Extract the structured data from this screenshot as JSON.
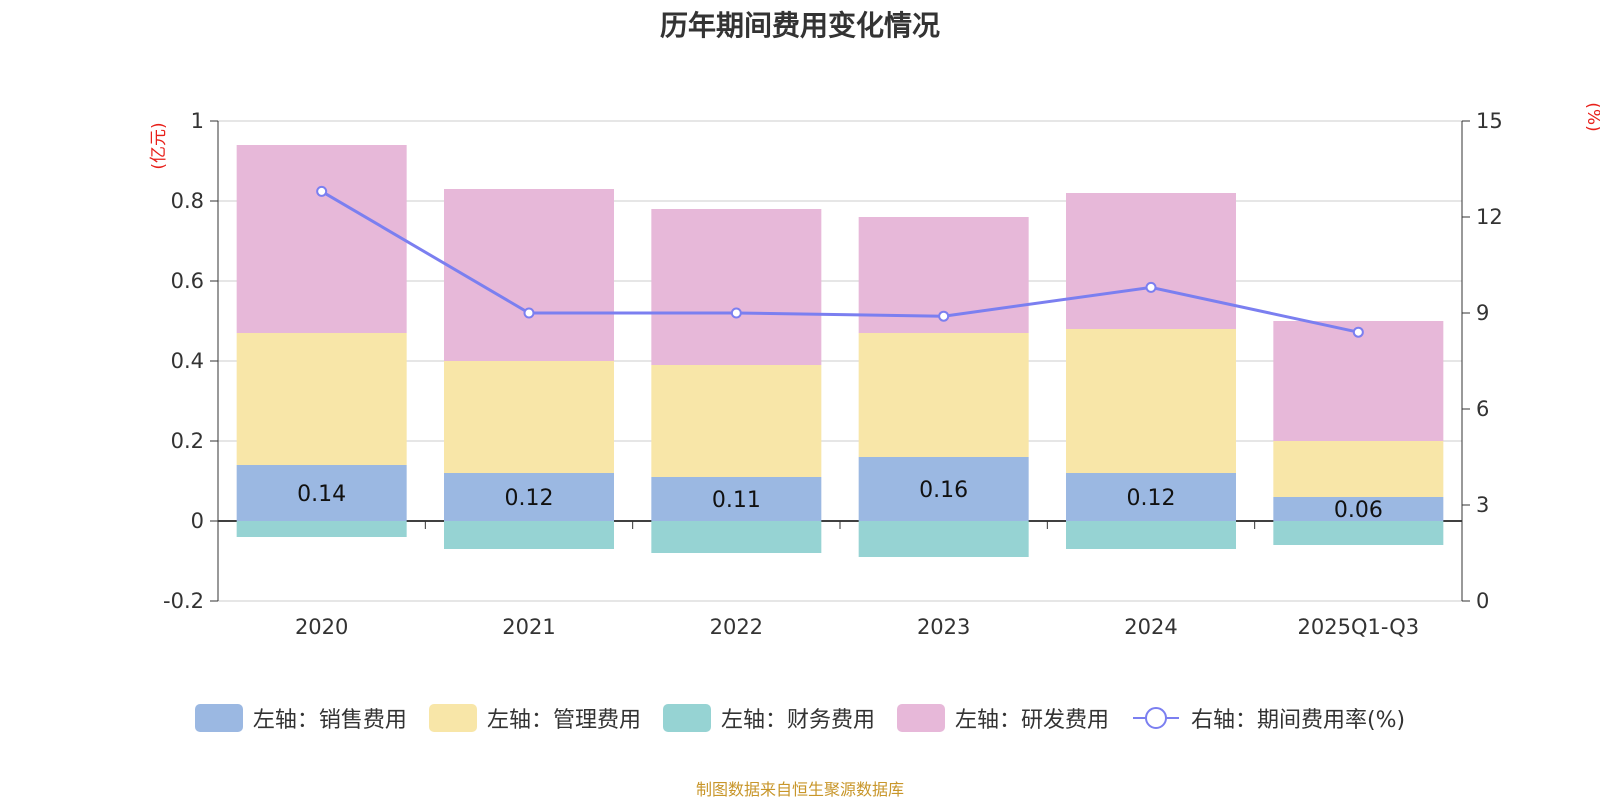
{
  "colors": {
    "sales": "#9bb8e2",
    "admin": "#f8e6a8",
    "finance": "#96d3d3",
    "rnd": "#e7b8d9",
    "rate": "#7b7ff0",
    "unit": "#e8201a",
    "footer": "#c8962a"
  },
  "legend": {
    "sales": "左轴：销售费用",
    "admin": "左轴：管理费用",
    "finance": "左轴：财务费用",
    "rnd": "左轴：研发费用",
    "rate": "右轴：期间费用率(%)"
  },
  "footer": "制图数据来自恒生聚源数据库",
  "chart_data": {
    "type": "bar",
    "title": "历年期间费用变化情况",
    "categories": [
      "2020",
      "2021",
      "2022",
      "2023",
      "2024",
      "2025Q1-Q3"
    ],
    "ylabel": "(亿元)",
    "ylabel_right": "(%)",
    "ylim": [
      -0.2,
      1
    ],
    "y_ticks": [
      "1",
      "0.8",
      "0.6",
      "0.4",
      "0.2",
      "0",
      "-0.2"
    ],
    "y_right_lim": [
      0,
      15
    ],
    "y_right_ticks": [
      "15",
      "12",
      "9",
      "6",
      "3",
      "0"
    ],
    "grid": true,
    "legend_position": "bottom",
    "series": [
      {
        "name": "左轴：销售费用",
        "key": "sales",
        "values": [
          0.14,
          0.12,
          0.11,
          0.16,
          0.12,
          0.06
        ],
        "labels": [
          "0.14",
          "0.12",
          "0.11",
          "0.16",
          "0.12",
          "0.06"
        ]
      },
      {
        "name": "左轴：管理费用",
        "key": "admin",
        "values": [
          0.33,
          0.28,
          0.28,
          0.31,
          0.36,
          0.14
        ]
      },
      {
        "name": "左轴：财务费用",
        "key": "finance",
        "values": [
          -0.04,
          -0.07,
          -0.08,
          -0.09,
          -0.07,
          -0.06
        ]
      },
      {
        "name": "左轴：研发费用",
        "key": "rnd",
        "values": [
          0.47,
          0.43,
          0.39,
          0.29,
          0.34,
          0.3
        ]
      },
      {
        "name": "右轴：期间费用率(%)",
        "key": "rate",
        "type": "line",
        "axis": "right",
        "values": [
          12.8,
          9.0,
          9.0,
          8.9,
          9.8,
          8.4
        ]
      }
    ]
  }
}
